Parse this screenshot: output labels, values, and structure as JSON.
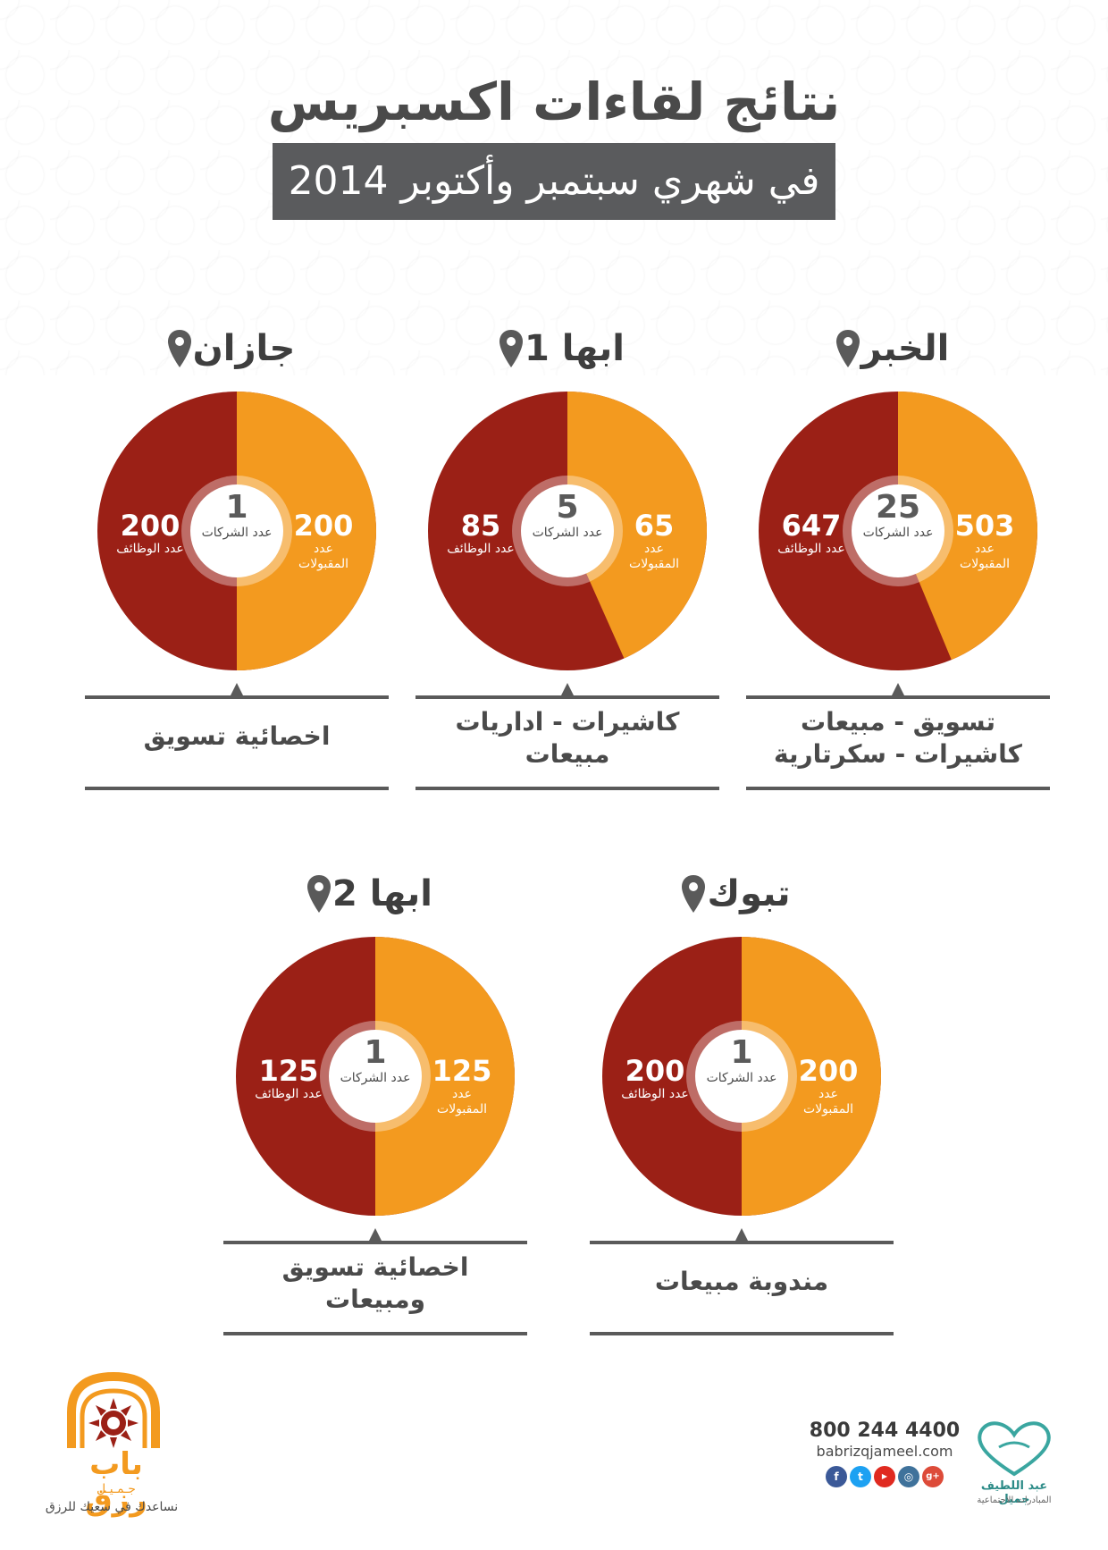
{
  "header": {
    "title": "نتائج لقاءات اكسبريس",
    "subtitle": "في شهري سبتمبر وأكتوبر 2014"
  },
  "labels": {
    "accepted": "عدد المقبولات",
    "jobs": "عدد الوظائف",
    "companies": "عدد الشركات"
  },
  "colors": {
    "accepted": "#f39a1f",
    "jobs": "#9b2016",
    "title": "#4a4a4a",
    "subtitle_bg": "#5a5b5d"
  },
  "cities": [
    {
      "name": "الخبر",
      "accepted": 503,
      "jobs": 647,
      "companies": 25,
      "caption_lines": [
        "تسويق - مبيعات",
        "كاشيرات - سكرتارية"
      ]
    },
    {
      "name": "ابها 1",
      "accepted": 65,
      "jobs": 85,
      "companies": 5,
      "caption_lines": [
        "كاشيرات - اداريات",
        "مبيعات"
      ]
    },
    {
      "name": "جازان",
      "accepted": 200,
      "jobs": 200,
      "companies": 1,
      "caption_lines": [
        "اخصائية تسويق"
      ]
    },
    {
      "name": "تبوك",
      "accepted": 200,
      "jobs": 200,
      "companies": 1,
      "caption_lines": [
        "مندوبة مبيعات"
      ]
    },
    {
      "name": "ابها 2",
      "accepted": 125,
      "jobs": 125,
      "companies": 1,
      "caption_lines": [
        "اخصائية تسويق",
        "ومبيعات"
      ]
    }
  ],
  "footer": {
    "brand_name": "باب رزق",
    "brand_sub": "جـمـيـل",
    "tagline": "نساعدك في سعيك للرزق",
    "phone": "800 244 4400",
    "website": "babrizqjameel.com",
    "partner_name": "عبد اللطيف جميل",
    "partner_sub": "المبادرات الاجتماعية",
    "social_icons": [
      "facebook-icon",
      "twitter-icon",
      "youtube-icon",
      "instagram-icon",
      "google-plus-icon"
    ]
  }
}
